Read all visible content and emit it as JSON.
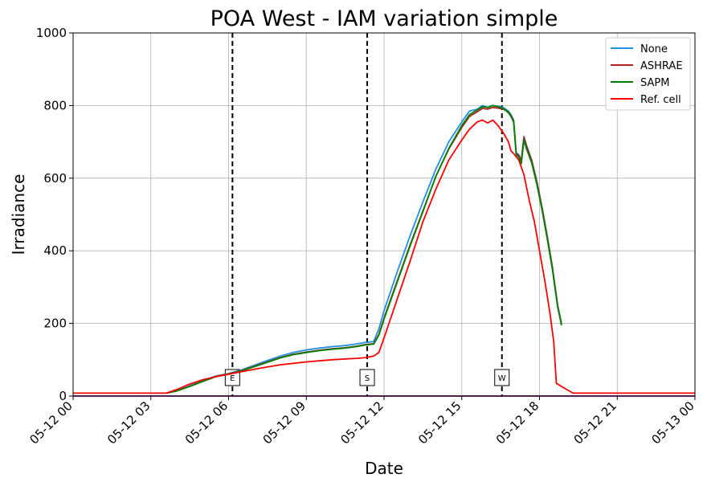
{
  "chart_data": {
    "type": "line",
    "title": "POA West - IAM variation simple",
    "xlabel": "Date",
    "ylabel": "Irradiance",
    "xlim": [
      0,
      24
    ],
    "ylim": [
      0,
      1000
    ],
    "yticks": [
      0,
      200,
      400,
      600,
      800,
      1000
    ],
    "xticks": [
      {
        "x": 0,
        "label": "05-12 00"
      },
      {
        "x": 3,
        "label": "05-12 03"
      },
      {
        "x": 6,
        "label": "05-12 06"
      },
      {
        "x": 9,
        "label": "05-12 09"
      },
      {
        "x": 12,
        "label": "05-12 12"
      },
      {
        "x": 15,
        "label": "05-12 15"
      },
      {
        "x": 18,
        "label": "05-12 18"
      },
      {
        "x": 21,
        "label": "05-12 21"
      },
      {
        "x": 24,
        "label": "05-13 00"
      }
    ],
    "grid": true,
    "legend_position": "top-right",
    "series": [
      {
        "name": "None",
        "color": "#1f8fe5",
        "points": [
          [
            3.6,
            8
          ],
          [
            4,
            15
          ],
          [
            4.5,
            28
          ],
          [
            5,
            42
          ],
          [
            5.5,
            55
          ],
          [
            6,
            62
          ],
          [
            6.5,
            72
          ],
          [
            7,
            85
          ],
          [
            7.5,
            98
          ],
          [
            8,
            110
          ],
          [
            8.5,
            120
          ],
          [
            9,
            127
          ],
          [
            9.5,
            132
          ],
          [
            10,
            136
          ],
          [
            10.5,
            139
          ],
          [
            11,
            144
          ],
          [
            11.3,
            148
          ],
          [
            11.6,
            150
          ],
          [
            11.8,
            185
          ],
          [
            12,
            235
          ],
          [
            12.5,
            340
          ],
          [
            13,
            440
          ],
          [
            13.5,
            535
          ],
          [
            14,
            625
          ],
          [
            14.5,
            700
          ],
          [
            15,
            755
          ],
          [
            15.3,
            785
          ],
          [
            15.6,
            790
          ],
          [
            15.8,
            800
          ],
          [
            16,
            795
          ],
          [
            16.2,
            800
          ],
          [
            16.4,
            798
          ],
          [
            16.6,
            795
          ],
          [
            16.8,
            785
          ],
          [
            16.9,
            775
          ],
          [
            17,
            760
          ],
          [
            17.1,
            670
          ],
          [
            17.2,
            665
          ],
          [
            17.3,
            650
          ],
          [
            17.4,
            715
          ],
          [
            17.5,
            690
          ],
          [
            17.7,
            650
          ],
          [
            17.9,
            590
          ],
          [
            18.1,
            520
          ],
          [
            18.3,
            440
          ],
          [
            18.5,
            355
          ],
          [
            18.7,
            250
          ],
          [
            18.85,
            200
          ]
        ]
      },
      {
        "name": "ASHRAE",
        "color": "#b22222",
        "points": [
          [
            3.6,
            8
          ],
          [
            4,
            14
          ],
          [
            4.5,
            27
          ],
          [
            5,
            41
          ],
          [
            5.5,
            54
          ],
          [
            6,
            61
          ],
          [
            6.5,
            70
          ],
          [
            7,
            82
          ],
          [
            7.5,
            94
          ],
          [
            8,
            106
          ],
          [
            8.5,
            115
          ],
          [
            9,
            121
          ],
          [
            9.5,
            126
          ],
          [
            10,
            130
          ],
          [
            10.5,
            133
          ],
          [
            11,
            138
          ],
          [
            11.3,
            142
          ],
          [
            11.6,
            144
          ],
          [
            11.8,
            170
          ],
          [
            12,
            215
          ],
          [
            12.5,
            315
          ],
          [
            13,
            415
          ],
          [
            13.5,
            510
          ],
          [
            14,
            605
          ],
          [
            14.5,
            680
          ],
          [
            15,
            740
          ],
          [
            15.3,
            770
          ],
          [
            15.6,
            783
          ],
          [
            15.8,
            792
          ],
          [
            16,
            790
          ],
          [
            16.2,
            795
          ],
          [
            16.4,
            793
          ],
          [
            16.6,
            790
          ],
          [
            16.8,
            782
          ],
          [
            16.9,
            772
          ],
          [
            17,
            758
          ],
          [
            17.1,
            668
          ],
          [
            17.2,
            662
          ],
          [
            17.3,
            648
          ],
          [
            17.4,
            712
          ],
          [
            17.5,
            688
          ],
          [
            17.7,
            648
          ],
          [
            17.9,
            588
          ],
          [
            18.1,
            518
          ],
          [
            18.3,
            438
          ],
          [
            18.5,
            353
          ],
          [
            18.7,
            248
          ],
          [
            18.85,
            198
          ]
        ]
      },
      {
        "name": "SAPM",
        "color": "#008000",
        "points": [
          [
            3.6,
            8
          ],
          [
            4,
            14
          ],
          [
            4.5,
            26
          ],
          [
            5,
            40
          ],
          [
            5.5,
            53
          ],
          [
            6,
            60
          ],
          [
            6.5,
            69
          ],
          [
            7,
            81
          ],
          [
            7.5,
            93
          ],
          [
            8,
            105
          ],
          [
            8.5,
            114
          ],
          [
            9,
            120
          ],
          [
            9.5,
            125
          ],
          [
            10,
            129
          ],
          [
            10.5,
            132
          ],
          [
            11,
            137
          ],
          [
            11.3,
            141
          ],
          [
            11.6,
            143
          ],
          [
            11.8,
            168
          ],
          [
            12,
            212
          ],
          [
            12.5,
            312
          ],
          [
            13,
            412
          ],
          [
            13.5,
            508
          ],
          [
            14,
            605
          ],
          [
            14.5,
            682
          ],
          [
            15,
            745
          ],
          [
            15.3,
            775
          ],
          [
            15.6,
            788
          ],
          [
            15.8,
            797
          ],
          [
            16,
            795
          ],
          [
            16.2,
            800
          ],
          [
            16.4,
            797
          ],
          [
            16.6,
            792
          ],
          [
            16.8,
            780
          ],
          [
            16.9,
            770
          ],
          [
            17,
            755
          ],
          [
            17.1,
            665
          ],
          [
            17.2,
            658
          ],
          [
            17.3,
            640
          ],
          [
            17.4,
            705
          ],
          [
            17.5,
            680
          ],
          [
            17.7,
            642
          ],
          [
            17.9,
            582
          ],
          [
            18.1,
            512
          ],
          [
            18.3,
            432
          ],
          [
            18.5,
            348
          ],
          [
            18.7,
            245
          ],
          [
            18.85,
            195
          ]
        ]
      },
      {
        "name": "Ref. cell",
        "color": "#ff0000",
        "points": [
          [
            0,
            8
          ],
          [
            3.6,
            8
          ],
          [
            4,
            18
          ],
          [
            4.5,
            33
          ],
          [
            5,
            45
          ],
          [
            5.5,
            53
          ],
          [
            6,
            60
          ],
          [
            6.5,
            67
          ],
          [
            7,
            74
          ],
          [
            7.5,
            80
          ],
          [
            8,
            86
          ],
          [
            8.5,
            90
          ],
          [
            9,
            94
          ],
          [
            9.5,
            97
          ],
          [
            10,
            100
          ],
          [
            10.5,
            102
          ],
          [
            11,
            104
          ],
          [
            11.3,
            106
          ],
          [
            11.6,
            110
          ],
          [
            11.8,
            120
          ],
          [
            12,
            160
          ],
          [
            12.5,
            265
          ],
          [
            13,
            370
          ],
          [
            13.5,
            480
          ],
          [
            14,
            570
          ],
          [
            14.5,
            650
          ],
          [
            15,
            705
          ],
          [
            15.3,
            735
          ],
          [
            15.6,
            755
          ],
          [
            15.8,
            760
          ],
          [
            16,
            752
          ],
          [
            16.2,
            760
          ],
          [
            16.4,
            745
          ],
          [
            16.6,
            725
          ],
          [
            16.8,
            700
          ],
          [
            16.9,
            675
          ],
          [
            17,
            668
          ],
          [
            17.2,
            650
          ],
          [
            17.4,
            610
          ],
          [
            17.6,
            540
          ],
          [
            17.8,
            480
          ],
          [
            18,
            400
          ],
          [
            18.2,
            320
          ],
          [
            18.4,
            230
          ],
          [
            18.55,
            150
          ],
          [
            18.65,
            35
          ],
          [
            19,
            20
          ],
          [
            19.3,
            8
          ],
          [
            24,
            8
          ]
        ]
      },
      {
        "color": "#800080",
        "points": [
          [
            0,
            0
          ],
          [
            24,
            0
          ]
        ]
      }
    ],
    "vlines": [
      {
        "x": 6.15,
        "label": "E"
      },
      {
        "x": 11.35,
        "label": "S"
      },
      {
        "x": 16.55,
        "label": "W"
      }
    ]
  }
}
